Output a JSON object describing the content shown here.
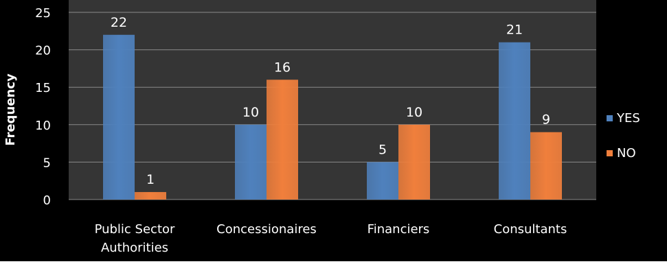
{
  "chart_data": {
    "type": "bar",
    "title": "",
    "xlabel": "",
    "ylabel": "Frequency",
    "categories": [
      "Public Sector\nAuthorities",
      "Concessionaires",
      "Financiers",
      "Consultants"
    ],
    "series": [
      {
        "name": "YES",
        "values": [
          22,
          10,
          5,
          21
        ],
        "color": "#4f81bd"
      },
      {
        "name": "NO",
        "values": [
          1,
          16,
          10,
          9
        ],
        "color": "#f07f3c"
      }
    ],
    "ylim": [
      0,
      25
    ],
    "yticks": [
      0,
      5,
      10,
      15,
      20,
      25
    ],
    "grid": true,
    "legend_position": "right",
    "data_labels": true
  },
  "colors": {
    "background": "#000000",
    "plot_area": "#353535",
    "gridline": "#8a8a8a",
    "text": "#ffffff"
  }
}
